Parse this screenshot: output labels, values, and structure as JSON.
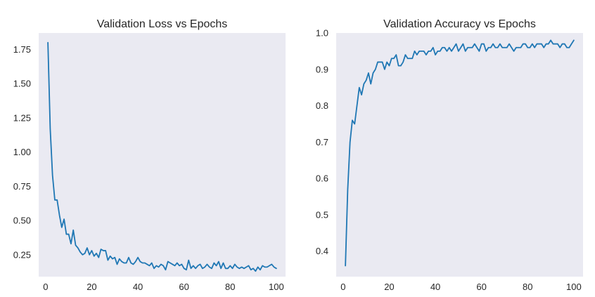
{
  "colors": {
    "background": "#ffffff",
    "plot_bg": "#eaeaf2",
    "line": "#1f77b4",
    "text": "#262626"
  },
  "chart_data": [
    {
      "type": "line",
      "title": "Validation Loss vs Epochs",
      "xlabel": "",
      "ylabel": "",
      "xlim": [
        -3,
        104
      ],
      "ylim": [
        0.09,
        1.87
      ],
      "xticks": [
        0,
        20,
        40,
        60,
        80,
        100
      ],
      "yticks": [
        0.25,
        0.5,
        0.75,
        1.0,
        1.25,
        1.5,
        1.75
      ],
      "ytick_labels": [
        "0.25",
        "0.50",
        "0.75",
        "1.00",
        "1.25",
        "1.50",
        "1.75"
      ],
      "grid": false,
      "x": [
        1,
        2,
        3,
        4,
        5,
        6,
        7,
        8,
        9,
        10,
        11,
        12,
        13,
        14,
        15,
        16,
        17,
        18,
        19,
        20,
        21,
        22,
        23,
        24,
        25,
        26,
        27,
        28,
        29,
        30,
        31,
        32,
        33,
        34,
        35,
        36,
        37,
        38,
        39,
        40,
        41,
        42,
        43,
        44,
        45,
        46,
        47,
        48,
        49,
        50,
        51,
        52,
        53,
        54,
        55,
        56,
        57,
        58,
        59,
        60,
        61,
        62,
        63,
        64,
        65,
        66,
        67,
        68,
        69,
        70,
        71,
        72,
        73,
        74,
        75,
        76,
        77,
        78,
        79,
        80,
        81,
        82,
        83,
        84,
        85,
        86,
        87,
        88,
        89,
        90,
        91,
        92,
        93,
        94,
        95,
        96,
        97,
        98,
        99,
        100
      ],
      "y": [
        1.8,
        1.17,
        0.83,
        0.65,
        0.65,
        0.54,
        0.45,
        0.51,
        0.4,
        0.4,
        0.33,
        0.43,
        0.32,
        0.3,
        0.27,
        0.25,
        0.26,
        0.3,
        0.25,
        0.28,
        0.24,
        0.26,
        0.23,
        0.29,
        0.28,
        0.28,
        0.21,
        0.24,
        0.22,
        0.23,
        0.18,
        0.22,
        0.2,
        0.19,
        0.19,
        0.23,
        0.19,
        0.18,
        0.2,
        0.23,
        0.2,
        0.19,
        0.19,
        0.18,
        0.17,
        0.19,
        0.15,
        0.17,
        0.16,
        0.18,
        0.17,
        0.14,
        0.2,
        0.19,
        0.18,
        0.17,
        0.19,
        0.17,
        0.18,
        0.15,
        0.14,
        0.21,
        0.15,
        0.17,
        0.15,
        0.17,
        0.18,
        0.15,
        0.16,
        0.18,
        0.16,
        0.15,
        0.19,
        0.17,
        0.2,
        0.15,
        0.19,
        0.15,
        0.15,
        0.17,
        0.15,
        0.18,
        0.16,
        0.15,
        0.16,
        0.15,
        0.16,
        0.17,
        0.14,
        0.15,
        0.13,
        0.16,
        0.14,
        0.17,
        0.16,
        0.16,
        0.17,
        0.18,
        0.16,
        0.15
      ]
    },
    {
      "type": "line",
      "title": "Validation Accuracy vs Epochs",
      "xlabel": "",
      "ylabel": "",
      "xlim": [
        -3,
        104
      ],
      "ylim": [
        0.33,
        1.0
      ],
      "xticks": [
        0,
        20,
        40,
        60,
        80,
        100
      ],
      "yticks": [
        0.4,
        0.5,
        0.6,
        0.7,
        0.8,
        0.9,
        1.0
      ],
      "ytick_labels": [
        "0.4",
        "0.5",
        "0.6",
        "0.7",
        "0.8",
        "0.9",
        "1.0"
      ],
      "grid": false,
      "x": [
        1,
        2,
        3,
        4,
        5,
        6,
        7,
        8,
        9,
        10,
        11,
        12,
        13,
        14,
        15,
        16,
        17,
        18,
        19,
        20,
        21,
        22,
        23,
        24,
        25,
        26,
        27,
        28,
        29,
        30,
        31,
        32,
        33,
        34,
        35,
        36,
        37,
        38,
        39,
        40,
        41,
        42,
        43,
        44,
        45,
        46,
        47,
        48,
        49,
        50,
        51,
        52,
        53,
        54,
        55,
        56,
        57,
        58,
        59,
        60,
        61,
        62,
        63,
        64,
        65,
        66,
        67,
        68,
        69,
        70,
        71,
        72,
        73,
        74,
        75,
        76,
        77,
        78,
        79,
        80,
        81,
        82,
        83,
        84,
        85,
        86,
        87,
        88,
        89,
        90,
        91,
        92,
        93,
        94,
        95,
        96,
        97,
        98,
        99,
        100
      ],
      "y": [
        0.36,
        0.57,
        0.7,
        0.76,
        0.75,
        0.8,
        0.85,
        0.83,
        0.86,
        0.87,
        0.89,
        0.86,
        0.89,
        0.9,
        0.92,
        0.92,
        0.92,
        0.9,
        0.92,
        0.91,
        0.93,
        0.93,
        0.94,
        0.91,
        0.91,
        0.92,
        0.94,
        0.93,
        0.93,
        0.93,
        0.95,
        0.94,
        0.95,
        0.95,
        0.95,
        0.94,
        0.95,
        0.95,
        0.96,
        0.94,
        0.95,
        0.95,
        0.96,
        0.96,
        0.95,
        0.96,
        0.95,
        0.96,
        0.97,
        0.95,
        0.96,
        0.97,
        0.95,
        0.96,
        0.96,
        0.96,
        0.97,
        0.96,
        0.95,
        0.97,
        0.97,
        0.95,
        0.96,
        0.96,
        0.97,
        0.96,
        0.96,
        0.97,
        0.96,
        0.96,
        0.96,
        0.97,
        0.96,
        0.95,
        0.96,
        0.96,
        0.96,
        0.97,
        0.97,
        0.96,
        0.96,
        0.97,
        0.96,
        0.97,
        0.97,
        0.97,
        0.96,
        0.97,
        0.97,
        0.98,
        0.97,
        0.97,
        0.97,
        0.96,
        0.97,
        0.97,
        0.96,
        0.96,
        0.97,
        0.98
      ]
    }
  ]
}
